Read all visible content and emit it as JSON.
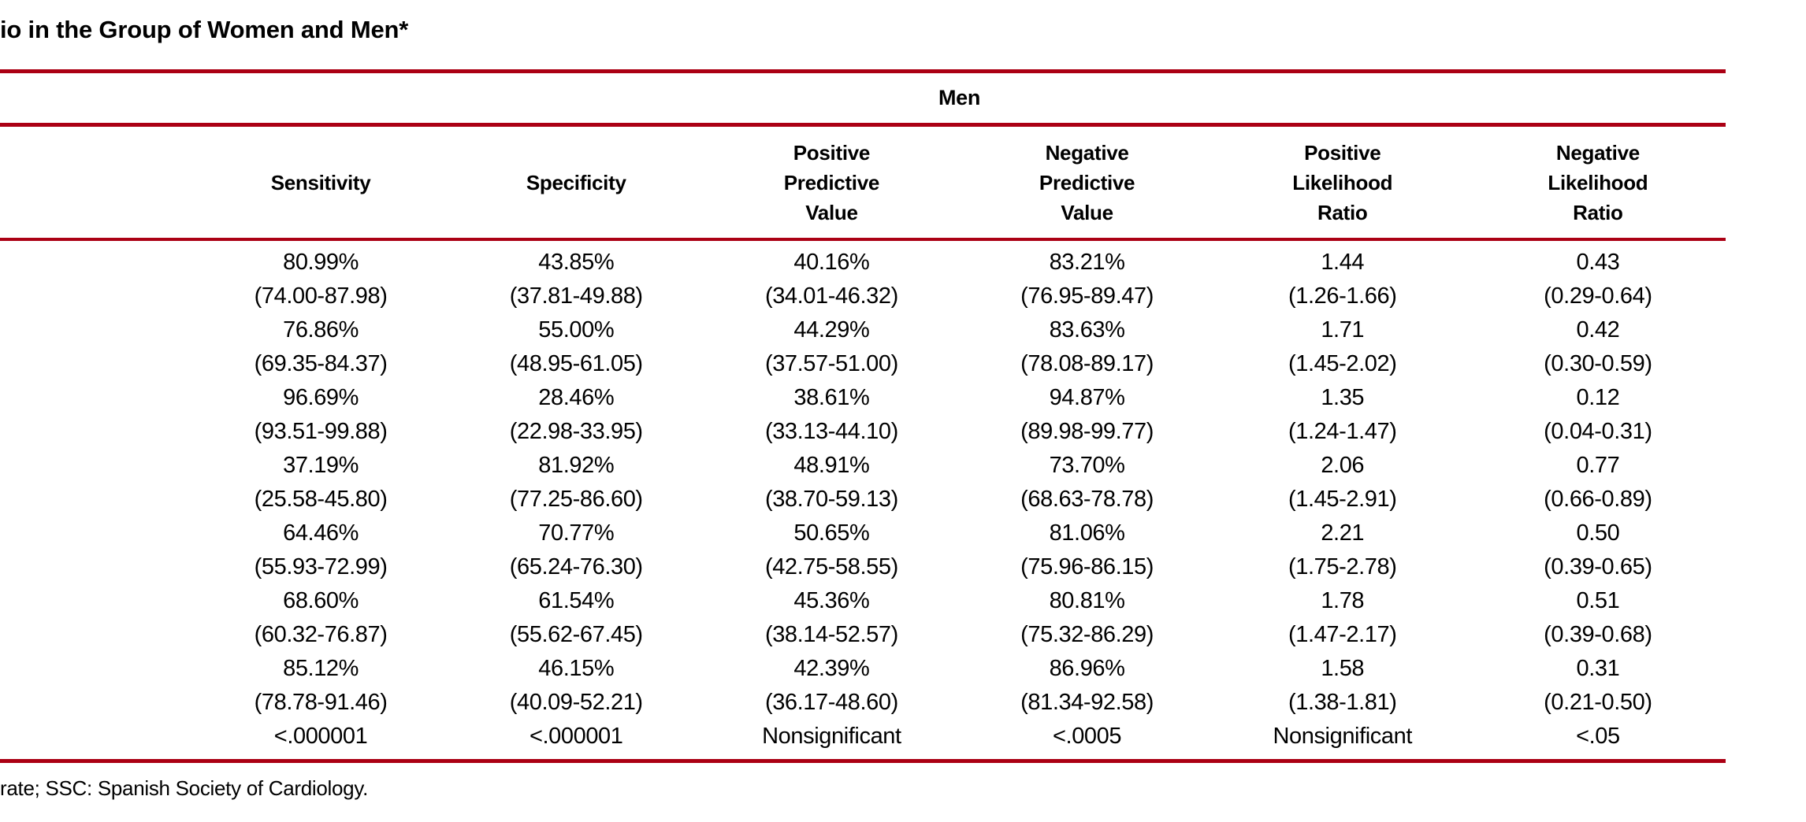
{
  "title": "io in the Group of Women and Men*",
  "group_header": "Men",
  "footnote": "rate; SSC: Spanish Society of Cardiology.",
  "accent_color": "#ab0014",
  "columns": [
    {
      "lines": [
        "Sensitivity"
      ]
    },
    {
      "lines": [
        "Specificity"
      ]
    },
    {
      "lines": [
        "Positive",
        "Predictive",
        "Value"
      ]
    },
    {
      "lines": [
        "Negative",
        "Predictive",
        "Value"
      ]
    },
    {
      "lines": [
        "Positive",
        "Likelihood",
        "Ratio"
      ]
    },
    {
      "lines": [
        "Negative",
        "Likelihood",
        "Ratio"
      ]
    }
  ],
  "rows": [
    {
      "cells": [
        {
          "value": "80.99%",
          "ci": "(74.00-87.98)"
        },
        {
          "value": "43.85%",
          "ci": "(37.81-49.88)"
        },
        {
          "value": "40.16%",
          "ci": "(34.01-46.32)"
        },
        {
          "value": "83.21%",
          "ci": "(76.95-89.47)"
        },
        {
          "value": "1.44",
          "ci": "(1.26-1.66)"
        },
        {
          "value": "0.43",
          "ci": "(0.29-0.64)"
        }
      ]
    },
    {
      "cells": [
        {
          "value": "76.86%",
          "ci": "(69.35-84.37)"
        },
        {
          "value": "55.00%",
          "ci": "(48.95-61.05)"
        },
        {
          "value": "44.29%",
          "ci": "(37.57-51.00)"
        },
        {
          "value": "83.63%",
          "ci": "(78.08-89.17)"
        },
        {
          "value": "1.71",
          "ci": "(1.45-2.02)"
        },
        {
          "value": "0.42",
          "ci": "(0.30-0.59)"
        }
      ]
    },
    {
      "cells": [
        {
          "value": "96.69%",
          "ci": "(93.51-99.88)"
        },
        {
          "value": "28.46%",
          "ci": "(22.98-33.95)"
        },
        {
          "value": "38.61%",
          "ci": "(33.13-44.10)"
        },
        {
          "value": "94.87%",
          "ci": "(89.98-99.77)"
        },
        {
          "value": "1.35",
          "ci": "(1.24-1.47)"
        },
        {
          "value": "0.12",
          "ci": "(0.04-0.31)"
        }
      ]
    },
    {
      "cells": [
        {
          "value": "37.19%",
          "ci": "(25.58-45.80)"
        },
        {
          "value": "81.92%",
          "ci": "(77.25-86.60)"
        },
        {
          "value": "48.91%",
          "ci": "(38.70-59.13)"
        },
        {
          "value": "73.70%",
          "ci": "(68.63-78.78)"
        },
        {
          "value": "2.06",
          "ci": "(1.45-2.91)"
        },
        {
          "value": "0.77",
          "ci": "(0.66-0.89)"
        }
      ]
    },
    {
      "cells": [
        {
          "value": "64.46%",
          "ci": "(55.93-72.99)"
        },
        {
          "value": "70.77%",
          "ci": "(65.24-76.30)"
        },
        {
          "value": "50.65%",
          "ci": "(42.75-58.55)"
        },
        {
          "value": "81.06%",
          "ci": "(75.96-86.15)"
        },
        {
          "value": "2.21",
          "ci": "(1.75-2.78)"
        },
        {
          "value": "0.50",
          "ci": "(0.39-0.65)"
        }
      ]
    },
    {
      "cells": [
        {
          "value": "68.60%",
          "ci": "(60.32-76.87)"
        },
        {
          "value": "61.54%",
          "ci": "(55.62-67.45)"
        },
        {
          "value": "45.36%",
          "ci": "(38.14-52.57)"
        },
        {
          "value": "80.81%",
          "ci": "(75.32-86.29)"
        },
        {
          "value": "1.78",
          "ci": "(1.47-2.17)"
        },
        {
          "value": "0.51",
          "ci": "(0.39-0.68)"
        }
      ]
    },
    {
      "cells": [
        {
          "value": "85.12%",
          "ci": "(78.78-91.46)"
        },
        {
          "value": "46.15%",
          "ci": "(40.09-52.21)"
        },
        {
          "value": "42.39%",
          "ci": "(36.17-48.60)"
        },
        {
          "value": "86.96%",
          "ci": "(81.34-92.58)"
        },
        {
          "value": "1.58",
          "ci": "(1.38-1.81)"
        },
        {
          "value": "0.31",
          "ci": "(0.21-0.50)"
        }
      ]
    }
  ],
  "p_row": [
    "<.000001",
    "<.000001",
    "Nonsignificant",
    "<.0005",
    "Nonsignificant",
    "<.05"
  ]
}
